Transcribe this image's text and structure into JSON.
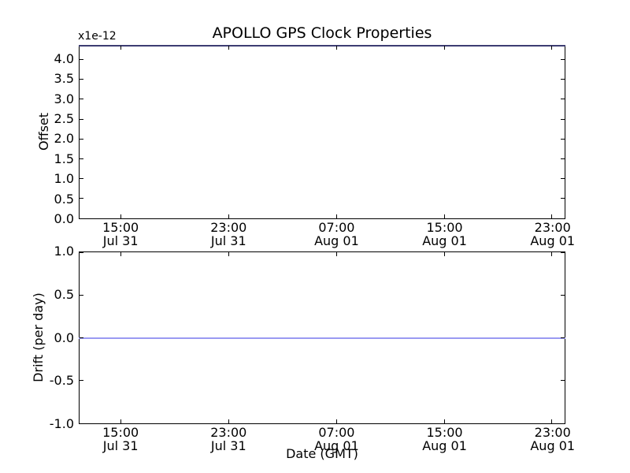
{
  "figure": {
    "title": "APOLLO GPS Clock Properties",
    "background": "#ffffff",
    "axes_color": "#000000"
  },
  "chart_data": [
    {
      "id": "offset_plot",
      "type": "line",
      "title": "APOLLO GPS Clock Properties",
      "ylabel": "Offset",
      "y_scale_text": "x1e-12",
      "ylim": [
        0.0,
        4.35
      ],
      "yticks": [
        4.0,
        3.5,
        3.0,
        2.5,
        2.0,
        1.5,
        1.0,
        0.5,
        0.0
      ],
      "ytick_labels": [
        "4.0",
        "3.5",
        "3.0",
        "2.5",
        "2.0",
        "1.5",
        "1.0",
        "0.5",
        "0.0"
      ],
      "xlim_hours": [
        11.9,
        47.95
      ],
      "xtick_hours": [
        15,
        23,
        31,
        39,
        47
      ],
      "xtick_labels": [
        {
          "time": "15:00",
          "date": "Jul 31"
        },
        {
          "time": "23:00",
          "date": "Jul 31"
        },
        {
          "time": "07:00",
          "date": "Aug 01"
        },
        {
          "time": "15:00",
          "date": "Aug 01"
        },
        {
          "time": "23:00",
          "date": "Aug 01"
        }
      ],
      "grid": false,
      "legend": "none",
      "series": [
        {
          "name": "Offset",
          "description": "constant horizontal line lying along the top edge of the axes (clipped at upper y-limit)",
          "constant_value": 4.35,
          "value_units": "x1e-12",
          "color": "#3d3d72"
        }
      ]
    },
    {
      "id": "drift_plot",
      "type": "line",
      "ylabel": "Drift (per day)",
      "xlabel": "Date (GMT)",
      "ylim": [
        -1.0,
        1.0
      ],
      "yticks": [
        1.0,
        0.5,
        0.0,
        -0.5,
        -1.0
      ],
      "ytick_labels": [
        "1.0",
        "0.5",
        "0.0",
        "-0.5",
        "-1.0"
      ],
      "xlim_hours": [
        11.9,
        47.95
      ],
      "xtick_hours": [
        15,
        23,
        31,
        39,
        47
      ],
      "xtick_labels": [
        {
          "time": "15:00",
          "date": "Jul 31"
        },
        {
          "time": "23:00",
          "date": "Jul 31"
        },
        {
          "time": "07:00",
          "date": "Aug 01"
        },
        {
          "time": "15:00",
          "date": "Aug 01"
        },
        {
          "time": "23:00",
          "date": "Aug 01"
        }
      ],
      "grid": false,
      "legend": "none",
      "series": [
        {
          "name": "Drift",
          "description": "constant horizontal line at 0.0 spanning full x-range",
          "constant_value": 0.0,
          "color": "#9a9af2"
        }
      ]
    }
  ],
  "layout_hints": {
    "tick_direction": "in",
    "mid_xtick_row_belongs_to": "offset_plot",
    "bottom_xtick_row_belongs_to": "drift_plot"
  }
}
